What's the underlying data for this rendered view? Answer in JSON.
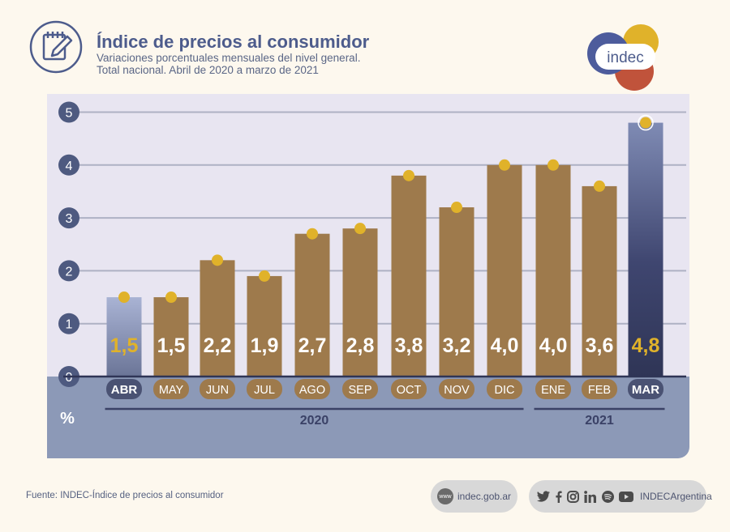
{
  "header": {
    "title": "Índice de precios al consumidor",
    "subtitle_line1": "Variaciones porcentuales mensuales del nivel general.",
    "subtitle_line2": "Total nacional. Abril de 2020 a marzo de 2021"
  },
  "brand": {
    "name": "indec"
  },
  "colors": {
    "bar": "#9e7a4c",
    "bar_first": "#8e9bc2",
    "bar_last": "#3c4368",
    "dot": "#e0b22a",
    "panel_bg": "#e8e5f1",
    "floor_bg": "#8c99b7",
    "axis_badge": "#4e5a80",
    "value_text": "#ffffff",
    "value_highlight": "#e0b22a"
  },
  "chart_data": {
    "type": "bar",
    "categories": [
      "ABR",
      "MAY",
      "JUN",
      "JUL",
      "AGO",
      "SEP",
      "OCT",
      "NOV",
      "DIC",
      "ENE",
      "FEB",
      "MAR"
    ],
    "values": [
      1.5,
      1.5,
      2.2,
      1.9,
      2.7,
      2.8,
      3.8,
      3.2,
      4.0,
      4.0,
      3.6,
      4.8
    ],
    "value_labels": [
      "1,5",
      "1,5",
      "2,2",
      "1,9",
      "2,7",
      "2,8",
      "3,8",
      "3,2",
      "4,0",
      "4,0",
      "3,6",
      "4,8"
    ],
    "y_ticks": [
      "0",
      "1",
      "2",
      "3",
      "4",
      "5"
    ],
    "ylim": [
      0,
      5
    ],
    "ylabel": "%",
    "year_groups": [
      {
        "label": "2020",
        "first": 0,
        "last": 8
      },
      {
        "label": "2021",
        "first": 9,
        "last": 11
      }
    ],
    "grid": true,
    "legend": "none"
  },
  "footer": {
    "source": "Fuente: INDEC-Índice de precios al consumidor",
    "www_badge": "www",
    "website": "indec.gob.ar",
    "social_handle": "INDECArgentina",
    "social_icons": [
      "twitter-icon",
      "facebook-icon",
      "instagram-icon",
      "linkedin-icon",
      "spotify-icon",
      "youtube-icon"
    ]
  }
}
